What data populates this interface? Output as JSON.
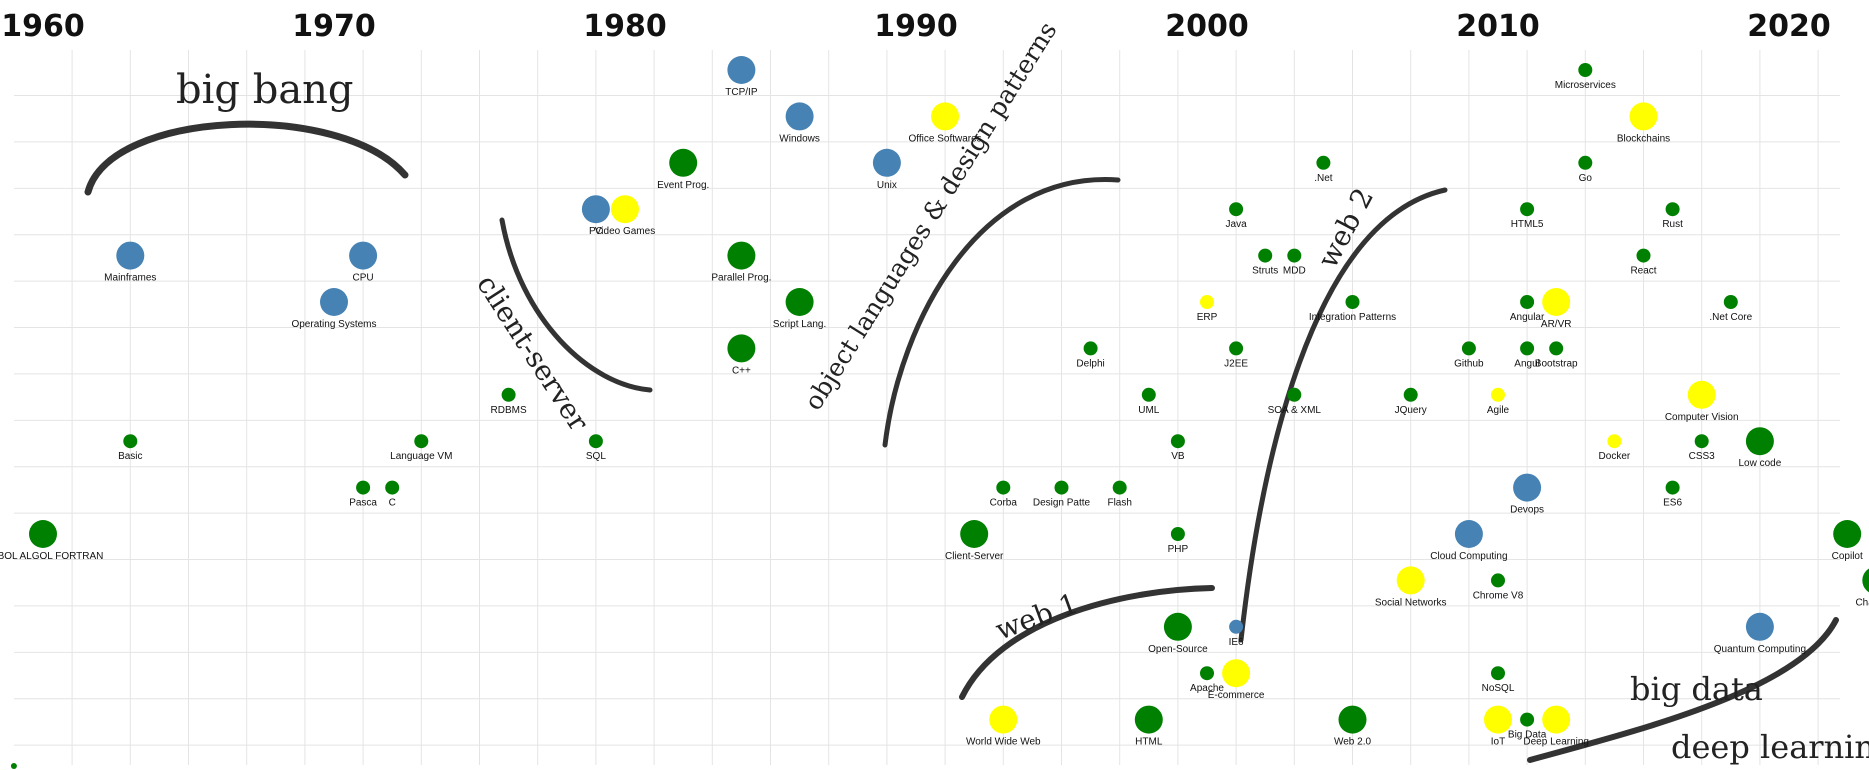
{
  "chart_data": {
    "type": "scatter",
    "title": "",
    "xlabel": "",
    "ylabel": "",
    "x_range": [
      1959,
      2023
    ],
    "x_ticks": [
      1960,
      1970,
      1980,
      1990,
      2000,
      2010,
      2020
    ],
    "rows": 15,
    "grid": true,
    "colors": {
      "blue": "#4682b4",
      "yellow": "#ffff00",
      "green": "#008000"
    },
    "series": [
      {
        "name": "",
        "color": "blue",
        "points": [
          {
            "x": 1984,
            "row": 1,
            "size": "large",
            "label": "TCP/IP"
          },
          {
            "x": 1986,
            "row": 2,
            "size": "large",
            "label": "Windows"
          },
          {
            "x": 1989,
            "row": 3,
            "size": "large",
            "label": "Unix"
          },
          {
            "x": 1979,
            "row": 4,
            "size": "large",
            "label": "PC"
          },
          {
            "x": 1963,
            "row": 5,
            "size": "large",
            "label": "Mainframes"
          },
          {
            "x": 1971,
            "row": 5,
            "size": "large",
            "label": "CPU"
          },
          {
            "x": 1970,
            "row": 6,
            "size": "large",
            "label": "Operating Systems"
          },
          {
            "x": 2011,
            "row": 10,
            "size": "large",
            "label": "Devops"
          },
          {
            "x": 2009,
            "row": 11,
            "size": "large",
            "label": "Cloud Computing"
          },
          {
            "x": 2001,
            "row": 13,
            "size": "small",
            "label": "IE6"
          },
          {
            "x": 2019,
            "row": 13,
            "size": "large",
            "label": "Quantum Computing"
          }
        ]
      },
      {
        "name": "",
        "color": "yellow",
        "points": [
          {
            "x": 1991,
            "row": 2,
            "size": "large",
            "label": "Office Softwares"
          },
          {
            "x": 2015,
            "row": 2,
            "size": "large",
            "label": "Blockchains"
          },
          {
            "x": 1980,
            "row": 4,
            "size": "large",
            "label": "Video Games"
          },
          {
            "x": 2000,
            "row": 6,
            "size": "small",
            "label": "ERP"
          },
          {
            "x": 2012,
            "row": 6,
            "size": "large",
            "label": "AR/VR"
          },
          {
            "x": 2010,
            "row": 8,
            "size": "small",
            "label": "Agile"
          },
          {
            "x": 2017,
            "row": 8,
            "size": "large",
            "label": "Computer Vision"
          },
          {
            "x": 2014,
            "row": 9,
            "size": "small",
            "label": "Docker"
          },
          {
            "x": 2007,
            "row": 12,
            "size": "large",
            "label": "Social Networks"
          },
          {
            "x": 2001,
            "row": 14,
            "size": "large",
            "label": "E-commerce"
          },
          {
            "x": 1993,
            "row": 15,
            "size": "large",
            "label": "World Wide Web"
          },
          {
            "x": 2010,
            "row": 15,
            "size": "large",
            "label": "IoT"
          },
          {
            "x": 2012,
            "row": 15,
            "size": "large",
            "label": "Deep Learning"
          }
        ]
      },
      {
        "name": "",
        "color": "green",
        "points": [
          {
            "x": 2013,
            "row": 1,
            "size": "small",
            "label": "Microservices"
          },
          {
            "x": 1982,
            "row": 3,
            "size": "large",
            "label": "Event Prog."
          },
          {
            "x": 2004,
            "row": 3,
            "size": "small",
            "label": ".Net"
          },
          {
            "x": 2013,
            "row": 3,
            "size": "small",
            "label": "Go"
          },
          {
            "x": 2001,
            "row": 4,
            "size": "small",
            "label": "Java"
          },
          {
            "x": 2011,
            "row": 4,
            "size": "small",
            "label": "HTML5"
          },
          {
            "x": 2016,
            "row": 4,
            "size": "small",
            "label": "Rust"
          },
          {
            "x": 1984,
            "row": 5,
            "size": "large",
            "label": "Parallel Prog."
          },
          {
            "x": 2002,
            "row": 5,
            "size": "small",
            "label": "Struts"
          },
          {
            "x": 2003,
            "row": 5,
            "size": "small",
            "label": "MDD"
          },
          {
            "x": 2015,
            "row": 5,
            "size": "small",
            "label": "React"
          },
          {
            "x": 1986,
            "row": 6,
            "size": "large",
            "label": "Script Lang."
          },
          {
            "x": 2005,
            "row": 6,
            "size": "small",
            "label": "Integration Patterns"
          },
          {
            "x": 2011,
            "row": 6,
            "size": "small",
            "label": "Angular"
          },
          {
            "x": 2018,
            "row": 6,
            "size": "small",
            "label": ".Net Core"
          },
          {
            "x": 1984,
            "row": 7,
            "size": "large",
            "label": "C++"
          },
          {
            "x": 1996,
            "row": 7,
            "size": "small",
            "label": "Delphi"
          },
          {
            "x": 2001,
            "row": 7,
            "size": "small",
            "label": "J2EE"
          },
          {
            "x": 2009,
            "row": 7,
            "size": "small",
            "label": "Github"
          },
          {
            "x": 2011,
            "row": 7,
            "size": "small",
            "label": "Angul"
          },
          {
            "x": 2012,
            "row": 7,
            "size": "small",
            "label": "Bootstrap"
          },
          {
            "x": 1976,
            "row": 8,
            "size": "small",
            "label": "RDBMS"
          },
          {
            "x": 1998,
            "row": 8,
            "size": "small",
            "label": "UML"
          },
          {
            "x": 2003,
            "row": 8,
            "size": "small",
            "label": "SOA & XML"
          },
          {
            "x": 2007,
            "row": 8,
            "size": "small",
            "label": "JQuery"
          },
          {
            "x": 1963,
            "row": 9,
            "size": "small",
            "label": "Basic"
          },
          {
            "x": 1973,
            "row": 9,
            "size": "small",
            "label": "Language VM"
          },
          {
            "x": 1979,
            "row": 9,
            "size": "small",
            "label": "SQL"
          },
          {
            "x": 1999,
            "row": 9,
            "size": "small",
            "label": "VB"
          },
          {
            "x": 2017,
            "row": 9,
            "size": "small",
            "label": "CSS3"
          },
          {
            "x": 2019,
            "row": 9,
            "size": "large",
            "label": "Low code"
          },
          {
            "x": 1971,
            "row": 10,
            "size": "small",
            "label": "Pasca"
          },
          {
            "x": 1972,
            "row": 10,
            "size": "small",
            "label": "C"
          },
          {
            "x": 1993,
            "row": 10,
            "size": "small",
            "label": "Corba"
          },
          {
            "x": 1995,
            "row": 10,
            "size": "small",
            "label": "Design Patte"
          },
          {
            "x": 1997,
            "row": 10,
            "size": "small",
            "label": "Flash"
          },
          {
            "x": 2016,
            "row": 10,
            "size": "small",
            "label": "ES6"
          },
          {
            "x": 1960,
            "row": 11,
            "size": "large",
            "label": "COBOL ALGOL FORTRAN"
          },
          {
            "x": 1992,
            "row": 11,
            "size": "large",
            "label": "Client-Server"
          },
          {
            "x": 1999,
            "row": 11,
            "size": "small",
            "label": "PHP"
          },
          {
            "x": 2022,
            "row": 11,
            "size": "large",
            "label": "Copilot"
          },
          {
            "x": 2010,
            "row": 12,
            "size": "small",
            "label": "Chrome V8"
          },
          {
            "x": 2023,
            "row": 12,
            "size": "large",
            "label": "ChatGPT"
          },
          {
            "x": 1999,
            "row": 13,
            "size": "large",
            "label": "Open-Source"
          },
          {
            "x": 2000,
            "row": 14,
            "size": "small",
            "label": "Apache"
          },
          {
            "x": 2010,
            "row": 14,
            "size": "small",
            "label": "NoSQL"
          },
          {
            "x": 1998,
            "row": 15,
            "size": "large",
            "label": "HTML"
          },
          {
            "x": 2005,
            "row": 15,
            "size": "large",
            "label": "Web 2.0"
          },
          {
            "x": 2011,
            "row": 15,
            "size": "small",
            "label": "Big Data"
          },
          {
            "x": 1959,
            "row": 16,
            "size": "tiny",
            "label": ""
          }
        ]
      }
    ],
    "annotations": [
      {
        "text": "big bang"
      },
      {
        "text": "client-server"
      },
      {
        "text": "object languages & design patterns"
      },
      {
        "text": "web 1"
      },
      {
        "text": "web 2"
      },
      {
        "text": "big data"
      },
      {
        "text": "deep learning"
      }
    ]
  }
}
